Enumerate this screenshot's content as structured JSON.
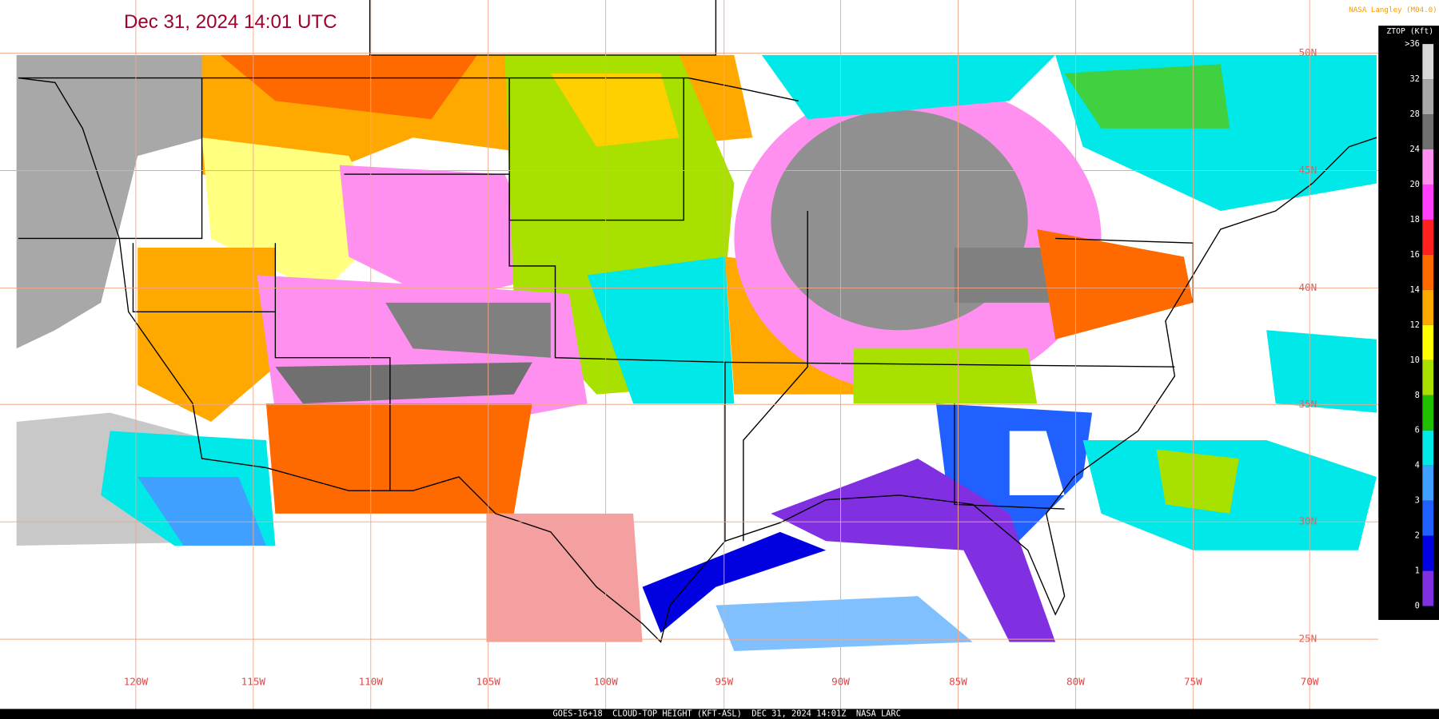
{
  "title": "Dec 31, 2024 14:01 UTC",
  "credit": "NASA Langley (M04.0)",
  "footer": "GOES-16+18  CLOUD-TOP HEIGHT (KFT-ASL)  DEC 31, 2024 14:01Z  NASA LARC",
  "colorbar": {
    "title": "ZTOP (Kft)",
    "labels": [
      ">36",
      "32",
      "28",
      "24",
      "20",
      "18",
      "16",
      "14",
      "12",
      "10",
      "8",
      "6",
      "4",
      "3",
      "2",
      "1",
      "0"
    ],
    "colors": [
      "#d8d8d8",
      "#a8a8a8",
      "#707070",
      "#ff90f0",
      "#ff40ff",
      "#ff2020",
      "#ff6a00",
      "#ffa800",
      "#ffff00",
      "#a8e000",
      "#20c000",
      "#00e8e8",
      "#40a0ff",
      "#2060ff",
      "#0000e0",
      "#8030e0"
    ]
  },
  "longitude_labels": [
    "120W",
    "115W",
    "110W",
    "105W",
    "100W",
    "95W",
    "90W",
    "85W",
    "80W",
    "75W",
    "70W"
  ],
  "latitude_labels": [
    "50N",
    "45N",
    "40N",
    "35N",
    "30N",
    "25N"
  ]
}
